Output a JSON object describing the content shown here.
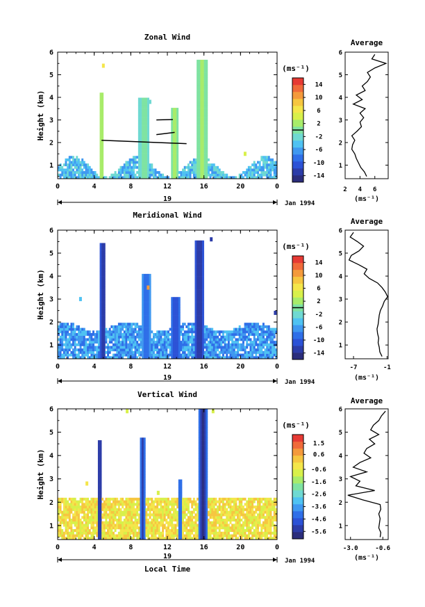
{
  "chart_data": [
    {
      "type": "heatmap",
      "title": "Zonal Wind",
      "x_values": [
        0,
        4,
        8,
        12,
        16,
        20,
        24
      ],
      "xtick_labels": [
        "0",
        "4",
        "8",
        "12",
        "16",
        "20",
        "0"
      ],
      "xlim": [
        0,
        24
      ],
      "y_ticks": [
        1,
        2,
        3,
        4,
        5,
        6
      ],
      "ytick_labels": [
        "1",
        "2",
        "3",
        "4",
        "5",
        "6"
      ],
      "ylim": [
        0.4,
        6
      ],
      "ylabel": "Height (km)",
      "date_label": "19",
      "month_label": "Jan 1994",
      "colorbar_unit": "(ms⁻¹)",
      "colorbar_range": [
        -16,
        16
      ],
      "colorbar_ticks": [
        14,
        10,
        6,
        2,
        -2,
        -6,
        -10,
        -14
      ],
      "colorbar_tick_labels": [
        "14",
        "10",
        "6",
        "2",
        "-2",
        "-6",
        "-10",
        "-14"
      ],
      "colorbar_zero_line": 0,
      "base_color_level": 5,
      "base_max_height": 1.4,
      "base_top_height": 0.5,
      "spikes": [
        {
          "time": 4.8,
          "top": 4.2,
          "width": 0.5,
          "color_level": 8
        },
        {
          "time": 9.5,
          "top": 4.0,
          "width": 1.2,
          "color_level": 7
        },
        {
          "time": 12.8,
          "top": 3.5,
          "width": 0.9,
          "color_level": 8
        },
        {
          "time": 15.8,
          "top": 5.7,
          "width": 1.2,
          "color_level": 8
        }
      ],
      "isolated_patches": [
        {
          "time": 5.0,
          "height": 5.4,
          "color_level": 10
        },
        {
          "time": 10.1,
          "height": 3.8,
          "color_level": 6
        },
        {
          "time": 20.5,
          "height": 1.5,
          "color_level": 9
        }
      ],
      "lines": [
        {
          "x": [
            4.8,
            14.1
          ],
          "y": [
            2.1,
            1.95
          ]
        },
        {
          "x": [
            10.8,
            12.6
          ],
          "y": [
            3.0,
            3.02
          ]
        },
        {
          "x": [
            10.8,
            12.8
          ],
          "y": [
            2.35,
            2.45
          ]
        }
      ],
      "profile": {
        "title": "Average",
        "xlabel": "(ms⁻¹)",
        "xtick_values": [
          2,
          4,
          6
        ],
        "xtick_labels": [
          "2",
          "4",
          "6"
        ],
        "xlim": [
          2,
          7.8
        ],
        "y_ticks": [
          1,
          2,
          3,
          4,
          5,
          6
        ],
        "ytick_labels": [
          "1",
          "2",
          "3",
          "4",
          "5",
          "6"
        ],
        "ylim": [
          0.4,
          6
        ],
        "height": [
          0.5,
          0.7,
          0.9,
          1.1,
          1.3,
          1.5,
          1.7,
          1.9,
          2.1,
          2.3,
          2.5,
          2.7,
          2.9,
          3.1,
          3.3,
          3.5,
          3.7,
          3.9,
          4.1,
          4.3,
          4.5,
          4.7,
          4.9,
          5.1,
          5.3,
          5.5,
          5.7,
          5.9
        ],
        "value": [
          4.9,
          4.6,
          4.1,
          3.8,
          3.5,
          3.3,
          2.9,
          3.0,
          3.3,
          2.9,
          3.6,
          4.2,
          4.0,
          4.5,
          4.0,
          4.7,
          3.1,
          4.3,
          3.5,
          4.7,
          4.3,
          5.0,
          5.4,
          5.0,
          6.0,
          7.5,
          5.6,
          6.0
        ]
      }
    },
    {
      "type": "heatmap",
      "title": "Meridional Wind",
      "x_values": [
        0,
        4,
        8,
        12,
        16,
        20,
        24
      ],
      "xtick_labels": [
        "0",
        "4",
        "8",
        "12",
        "16",
        "20",
        "0"
      ],
      "xlim": [
        0,
        24
      ],
      "y_ticks": [
        1,
        2,
        3,
        4,
        5,
        6
      ],
      "ytick_labels": [
        "1",
        "2",
        "3",
        "4",
        "5",
        "6"
      ],
      "ylim": [
        0.4,
        6
      ],
      "ylabel": "Height (km)",
      "date_label": "19",
      "month_label": "Jan 1994",
      "colorbar_unit": "(ms⁻¹)",
      "colorbar_range": [
        -16,
        16
      ],
      "colorbar_ticks": [
        14,
        10,
        6,
        2,
        -2,
        -6,
        -10,
        -14
      ],
      "colorbar_tick_labels": [
        "14",
        "10",
        "6",
        "2",
        "-2",
        "-6",
        "-10",
        "-14"
      ],
      "colorbar_zero_line": 0,
      "base_color_level": 4,
      "base_max_height": 2.0,
      "base_top_height": 1.6,
      "spikes": [
        {
          "time": 5.0,
          "top": 5.4,
          "width": 0.6,
          "color_level": 1
        },
        {
          "time": 9.7,
          "top": 4.1,
          "width": 1.0,
          "color_level": 3
        },
        {
          "time": 12.9,
          "top": 3.1,
          "width": 1.0,
          "color_level": 2
        },
        {
          "time": 15.5,
          "top": 5.6,
          "width": 1.0,
          "color_level": 1
        }
      ],
      "isolated_patches": [
        {
          "time": 16.8,
          "height": 5.6,
          "color_level": 1
        },
        {
          "time": 2.5,
          "height": 3.0,
          "color_level": 5
        },
        {
          "time": 9.9,
          "height": 3.5,
          "color_level": 12
        },
        {
          "time": 23.8,
          "height": 2.4,
          "color_level": 1
        }
      ],
      "lines": [],
      "profile": {
        "title": "Average",
        "xlabel": "(ms⁻¹)",
        "xtick_values": [
          -7,
          -1
        ],
        "xtick_labels": [
          "-7",
          "-1"
        ],
        "xlim": [
          -8.5,
          -0.8
        ],
        "y_ticks": [
          1,
          2,
          3,
          4,
          5,
          6
        ],
        "ytick_labels": [
          "1",
          "2",
          "3",
          "4",
          "5",
          "6"
        ],
        "ylim": [
          0.4,
          6
        ],
        "height": [
          0.5,
          0.7,
          0.9,
          1.1,
          1.3,
          1.5,
          1.7,
          1.9,
          2.1,
          2.3,
          2.5,
          2.7,
          2.9,
          3.1,
          3.3,
          3.5,
          3.7,
          3.9,
          4.1,
          4.3,
          4.5,
          4.7,
          4.9,
          5.1,
          5.3,
          5.5,
          5.7,
          5.9
        ],
        "value": [
          -1.9,
          -2.3,
          -2.4,
          -2.6,
          -2.5,
          -2.7,
          -2.8,
          -2.6,
          -2.5,
          -2.4,
          -2.2,
          -1.8,
          -1.5,
          -0.9,
          -1.3,
          -1.9,
          -2.7,
          -4.2,
          -5.1,
          -4.6,
          -6.1,
          -7.8,
          -7.4,
          -6.0,
          -5.2,
          -6.3,
          -7.6,
          -7.0
        ]
      }
    },
    {
      "type": "heatmap",
      "title": "Vertical Wind",
      "x_values": [
        0,
        4,
        8,
        12,
        16,
        20,
        24
      ],
      "xtick_labels": [
        "0",
        "4",
        "8",
        "12",
        "16",
        "20",
        "0"
      ],
      "xlim": [
        0,
        24
      ],
      "y_ticks": [
        1,
        2,
        3,
        4,
        5,
        6
      ],
      "ytick_labels": [
        "1",
        "2",
        "3",
        "4",
        "5",
        "6"
      ],
      "ylim": [
        0.4,
        6
      ],
      "ylabel": "Height (km)",
      "xlabel": "Local Time",
      "date_label": "19",
      "month_label": "Jan 1994",
      "colorbar_unit": "(ms⁻¹)",
      "colorbar_range": [
        -6.2,
        2.2
      ],
      "colorbar_ticks": [
        1.5,
        0.6,
        -0.6,
        -1.6,
        -2.6,
        -3.6,
        -4.6,
        -5.6
      ],
      "colorbar_tick_labels": [
        "1.5",
        "0.6",
        "-0.6",
        "-1.6",
        "-2.6",
        "-3.6",
        "-4.6",
        "-5.6"
      ],
      "colorbar_zero_line": null,
      "base_color_level": 10,
      "base_max_height": 2.2,
      "base_top_height": 2.2,
      "spikes": [
        {
          "time": 4.6,
          "top": 4.6,
          "width": 0.5,
          "color_level": 0
        },
        {
          "time": 9.3,
          "top": 4.8,
          "width": 0.5,
          "color_level": 1
        },
        {
          "time": 13.4,
          "top": 3.0,
          "width": 0.4,
          "color_level": 2
        },
        {
          "time": 15.9,
          "top": 6.0,
          "width": 0.9,
          "color_level": 0
        }
      ],
      "isolated_patches": [
        {
          "time": 7.6,
          "height": 5.9,
          "color_level": 9
        },
        {
          "time": 17.0,
          "height": 5.9,
          "color_level": 9
        },
        {
          "time": 3.2,
          "height": 2.8,
          "color_level": 10
        },
        {
          "time": 11.0,
          "height": 2.4,
          "color_level": 9
        }
      ],
      "lines": [],
      "profile": {
        "title": "Average",
        "xlabel": "(ms⁻¹)",
        "xtick_values": [
          -3.0,
          -0.6
        ],
        "xtick_labels": [
          "-3.0",
          "-0.6"
        ],
        "xlim": [
          -3.4,
          -0.2
        ],
        "y_ticks": [
          1,
          2,
          3,
          4,
          5,
          6
        ],
        "ytick_labels": [
          "1",
          "2",
          "3",
          "4",
          "5",
          "6"
        ],
        "ylim": [
          0.4,
          6
        ],
        "height": [
          0.5,
          0.7,
          0.9,
          1.1,
          1.3,
          1.5,
          1.7,
          1.9,
          2.1,
          2.3,
          2.5,
          2.7,
          2.9,
          3.1,
          3.3,
          3.5,
          3.7,
          3.9,
          4.1,
          4.3,
          4.5,
          4.7,
          4.9,
          5.1,
          5.3,
          5.5,
          5.7,
          5.9
        ],
        "value": [
          -0.8,
          -0.75,
          -0.9,
          -0.85,
          -0.8,
          -0.9,
          -0.75,
          -0.8,
          -2.1,
          -3.2,
          -1.2,
          -2.6,
          -2.3,
          -3.0,
          -1.8,
          -2.8,
          -2.3,
          -1.5,
          -2.0,
          -1.8,
          -1.2,
          -1.6,
          -0.9,
          -1.5,
          -1.3,
          -0.9,
          -0.7,
          -0.4
        ]
      }
    }
  ]
}
